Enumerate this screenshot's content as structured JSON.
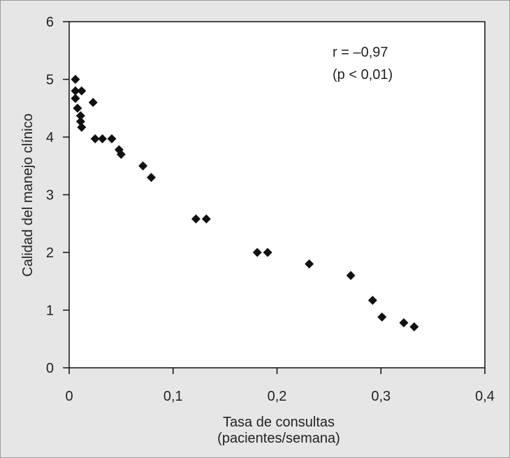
{
  "chart_data": {
    "type": "scatter",
    "xlabel_line1": "Tasa de consultas",
    "xlabel_line2": "(pacientes/semana)",
    "ylabel": "Calidad del manejo clínico",
    "xlim": [
      0,
      0.4
    ],
    "ylim": [
      0,
      6
    ],
    "x_ticks": [
      0,
      0.1,
      0.2,
      0.3,
      0.4
    ],
    "x_tick_labels": [
      "0",
      "0,1",
      "0,2",
      "0,3",
      "0,4"
    ],
    "y_ticks": [
      0,
      1,
      2,
      3,
      4,
      5,
      6
    ],
    "y_tick_labels": [
      "0",
      "1",
      "2",
      "3",
      "4",
      "5",
      "6"
    ],
    "grid": false,
    "annotations": [
      "r = –0,97",
      "(p < 0,01)"
    ],
    "marker": "diamond",
    "marker_color": "#111111",
    "points": [
      {
        "x": 0.006,
        "y": 5.0
      },
      {
        "x": 0.006,
        "y": 4.8
      },
      {
        "x": 0.006,
        "y": 4.67
      },
      {
        "x": 0.012,
        "y": 4.8
      },
      {
        "x": 0.008,
        "y": 4.5
      },
      {
        "x": 0.011,
        "y": 4.37
      },
      {
        "x": 0.011,
        "y": 4.27
      },
      {
        "x": 0.012,
        "y": 4.17
      },
      {
        "x": 0.023,
        "y": 4.6
      },
      {
        "x": 0.025,
        "y": 3.97
      },
      {
        "x": 0.032,
        "y": 3.97
      },
      {
        "x": 0.041,
        "y": 3.97
      },
      {
        "x": 0.048,
        "y": 3.78
      },
      {
        "x": 0.05,
        "y": 3.7
      },
      {
        "x": 0.071,
        "y": 3.5
      },
      {
        "x": 0.079,
        "y": 3.3
      },
      {
        "x": 0.122,
        "y": 2.58
      },
      {
        "x": 0.132,
        "y": 2.58
      },
      {
        "x": 0.181,
        "y": 2.0
      },
      {
        "x": 0.191,
        "y": 2.0
      },
      {
        "x": 0.231,
        "y": 1.8
      },
      {
        "x": 0.271,
        "y": 1.6
      },
      {
        "x": 0.292,
        "y": 1.17
      },
      {
        "x": 0.301,
        "y": 0.88
      },
      {
        "x": 0.322,
        "y": 0.78
      },
      {
        "x": 0.332,
        "y": 0.71
      }
    ]
  }
}
